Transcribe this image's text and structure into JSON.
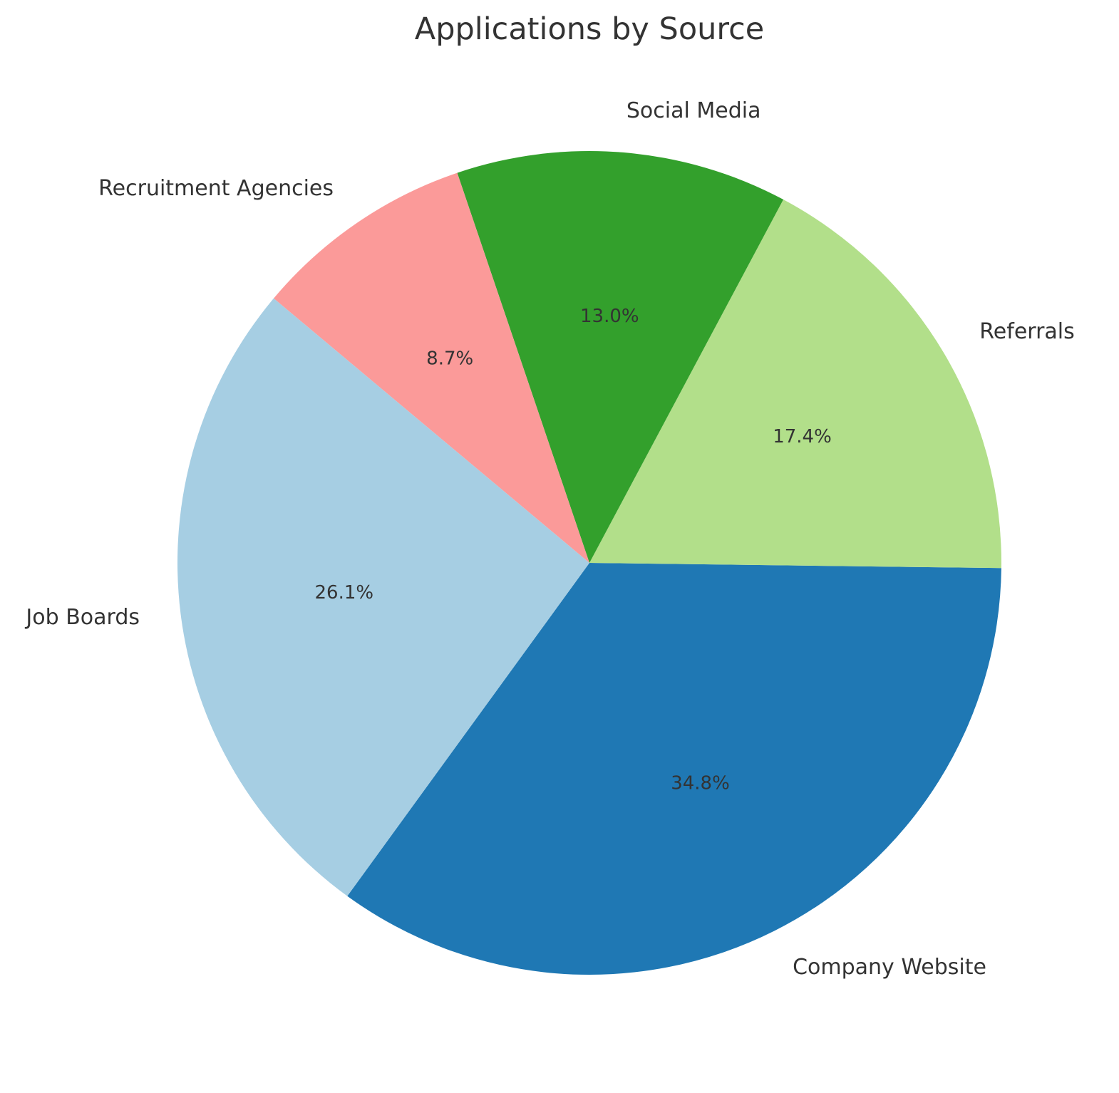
{
  "chart_data": {
    "type": "pie",
    "title": "Applications by Source",
    "categories": [
      "Company Website",
      "Referrals",
      "Social Media",
      "Recruitment Agencies",
      "Job Boards"
    ],
    "values": [
      34.8,
      17.4,
      13.0,
      8.7,
      26.1
    ],
    "percent_labels": [
      "34.8%",
      "17.4%",
      "13.0%",
      "8.7%",
      "26.1%"
    ],
    "colors": [
      "#1f78b4",
      "#b2df8a",
      "#33a02c",
      "#fb9a99",
      "#a6cee3"
    ],
    "start_angle_deg": -126,
    "direction": "counterclockwise",
    "legend": "none"
  }
}
